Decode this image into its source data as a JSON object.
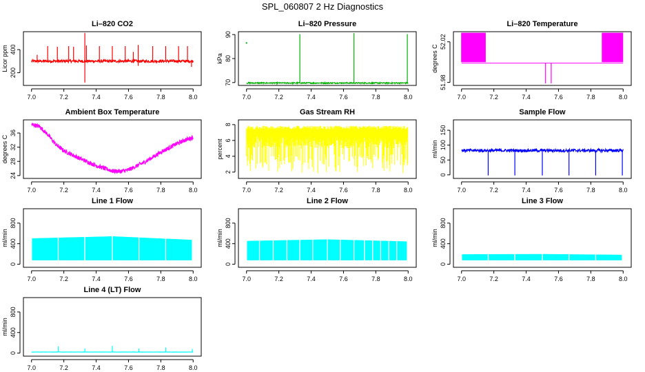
{
  "page": {
    "title": "SPL_060807  2 Hz Diagnostics"
  },
  "chart_data": [
    {
      "type": "line",
      "title": "Li–820 CO2",
      "ylabel": "Licor ppm",
      "color": "#ff0000",
      "xlim": [
        6.95,
        8.05
      ],
      "ylim": [
        90,
        555
      ],
      "xticks": [
        "7.0",
        "7.2",
        "7.4",
        "7.6",
        "7.8",
        "8.0"
      ],
      "yticks": [
        "200",
        "400"
      ],
      "baseline": 300,
      "noise": 12,
      "spikes": [
        [
          7.035,
          355
        ],
        [
          7.1,
          430
        ],
        [
          7.16,
          425
        ],
        [
          7.23,
          430
        ],
        [
          7.26,
          425
        ],
        [
          7.34,
          435
        ],
        [
          7.42,
          430
        ],
        [
          7.5,
          430
        ],
        [
          7.58,
          430
        ],
        [
          7.63,
          380
        ],
        [
          7.66,
          440
        ],
        [
          7.75,
          430
        ],
        [
          7.83,
          430
        ],
        [
          7.91,
          430
        ],
        [
          7.965,
          430
        ]
      ],
      "down_spikes": [
        [
          7.33,
          115
        ],
        [
          7.66,
          260
        ],
        [
          7.99,
          250
        ]
      ],
      "up_spikes": [
        [
          7.33,
          545
        ]
      ]
    },
    {
      "type": "line",
      "title": "Li–820 Pressure",
      "ylabel": "kPa",
      "color": "#00b000",
      "xlim": [
        6.95,
        8.05
      ],
      "ylim": [
        68.8,
        91.2
      ],
      "xticks": [
        "7.0",
        "7.2",
        "7.4",
        "7.6",
        "7.8",
        "8.0"
      ],
      "yticks": [
        "70",
        "80",
        "90"
      ],
      "baseline": 69.8,
      "noise": 0.25,
      "up_spikes": [
        [
          7.33,
          90.2
        ],
        [
          7.665,
          90.6
        ],
        [
          7.995,
          90.2
        ]
      ],
      "isolated_points": [
        [
          7.0,
          86.5
        ]
      ]
    },
    {
      "type": "line",
      "title": "Li–820 Temperature",
      "ylabel": "degrees C",
      "color": "#ff00ff",
      "xlim": [
        6.95,
        8.05
      ],
      "ylim": [
        51.977,
        52.03
      ],
      "xticks": [
        "7.0",
        "7.2",
        "7.4",
        "7.6",
        "7.8",
        "8.0"
      ],
      "yticks": [
        "51.98",
        "52.02"
      ],
      "baseline": 51.999,
      "band_left": [
        7.0,
        7.15,
        52.0,
        52.029
      ],
      "band_right": [
        7.87,
        8.0,
        52.0,
        52.029
      ],
      "down_spikes": [
        [
          7.52,
          51.979
        ],
        [
          7.555,
          51.979
        ]
      ]
    },
    {
      "type": "line",
      "title": "Ambient Box Temperature",
      "ylabel": "degrees C",
      "color": "#ff00ff",
      "xlim": [
        6.95,
        8.05
      ],
      "ylim": [
        23.2,
        39.7
      ],
      "xticks": [
        "7.0",
        "7.2",
        "7.4",
        "7.6",
        "7.8",
        "8.0"
      ],
      "yticks": [
        "24",
        "28",
        "32",
        "36"
      ],
      "curve_x": [
        7.0,
        7.05,
        7.1,
        7.15,
        7.2,
        7.3,
        7.4,
        7.5,
        7.55,
        7.6,
        7.7,
        7.8,
        7.9,
        7.95,
        8.0
      ],
      "curve_y": [
        38.5,
        37.8,
        35.6,
        32.8,
        31.0,
        28.8,
        26.8,
        25.3,
        25.2,
        25.6,
        27.8,
        30.6,
        33.0,
        34.0,
        34.8
      ],
      "noise": 0.6
    },
    {
      "type": "line",
      "title": "Gas Stream RH",
      "ylabel": "percent",
      "color": "#ffff00",
      "xlim": [
        6.95,
        8.05
      ],
      "ylim": [
        1.2,
        8.6
      ],
      "xticks": [
        "7.0",
        "7.2",
        "7.4",
        "7.6",
        "7.8",
        "8.0"
      ],
      "yticks": [
        "2",
        "4",
        "6",
        "8"
      ],
      "band_top": 7.6,
      "band_bottom_min": 1.8,
      "band_bottom_max": 6.5
    },
    {
      "type": "line",
      "title": "Sample Flow",
      "ylabel": "ml/min",
      "color": "#0000ff",
      "xlim": [
        6.95,
        8.05
      ],
      "ylim": [
        -12,
        185
      ],
      "xticks": [
        "7.0",
        "7.2",
        "7.4",
        "7.6",
        "7.8",
        "8.0"
      ],
      "yticks": [
        "0",
        "50",
        "100",
        "150"
      ],
      "baseline": 82,
      "noise": 5,
      "down_spikes": [
        [
          7.165,
          -2
        ],
        [
          7.33,
          -2
        ],
        [
          7.5,
          -2
        ],
        [
          7.665,
          -2
        ],
        [
          7.83,
          -2
        ],
        [
          7.995,
          -2
        ]
      ]
    },
    {
      "type": "area",
      "title": "Line 1 Flow",
      "ylabel": "ml/min",
      "color": "#00ffff",
      "xlim": [
        6.95,
        8.05
      ],
      "ylim": [
        -60,
        1080
      ],
      "xticks": [
        "7.0",
        "7.2",
        "7.4",
        "7.6",
        "7.8",
        "8.0"
      ],
      "yticks": [
        "0",
        "400",
        "800"
      ],
      "band_bottom": 80,
      "band_top_start": 500,
      "band_top_peak": 540,
      "band_top_end": 470,
      "gaps": [
        7.165,
        7.33,
        7.5,
        7.665,
        7.83,
        7.995
      ]
    },
    {
      "type": "area",
      "title": "Line 2 Flow",
      "ylabel": "ml/min",
      "color": "#00ffff",
      "xlim": [
        6.95,
        8.05
      ],
      "ylim": [
        -60,
        1080
      ],
      "xticks": [
        "7.0",
        "7.2",
        "7.4",
        "7.6",
        "7.8",
        "8.0"
      ],
      "yticks": [
        "0",
        "400",
        "800"
      ],
      "band_bottom": 80,
      "band_top_start": 450,
      "band_top_peak": 480,
      "band_top_end": 440,
      "gaps": [
        7.08,
        7.165,
        7.25,
        7.33,
        7.41,
        7.5,
        7.58,
        7.665,
        7.73,
        7.78,
        7.83,
        7.88,
        7.93,
        7.995
      ]
    },
    {
      "type": "area",
      "title": "Line 3 Flow",
      "ylabel": "ml/min",
      "color": "#00ffff",
      "xlim": [
        6.95,
        8.05
      ],
      "ylim": [
        -60,
        1080
      ],
      "xticks": [
        "7.0",
        "7.2",
        "7.4",
        "7.6",
        "7.8",
        "8.0"
      ],
      "yticks": [
        "0",
        "400",
        "800"
      ],
      "band_bottom": 80,
      "band_top_start": 190,
      "band_top_peak": 195,
      "band_top_end": 180,
      "gaps": [
        7.165,
        7.33,
        7.5,
        7.665,
        7.83,
        7.995
      ]
    },
    {
      "type": "line",
      "title": "Line 4 (LT) Flow",
      "ylabel": "ml/min",
      "color": "#00ffff",
      "xlim": [
        6.95,
        8.05
      ],
      "ylim": [
        -60,
        1080
      ],
      "xticks": [
        "7.0",
        "7.2",
        "7.4",
        "7.6",
        "7.8",
        "8.0"
      ],
      "yticks": [
        "0",
        "400",
        "800"
      ],
      "baseline": 20,
      "noise": 3,
      "up_spikes": [
        [
          7.165,
          130
        ],
        [
          7.33,
          90
        ],
        [
          7.5,
          140
        ],
        [
          7.665,
          90
        ],
        [
          7.83,
          110
        ],
        [
          7.995,
          80
        ]
      ]
    }
  ]
}
